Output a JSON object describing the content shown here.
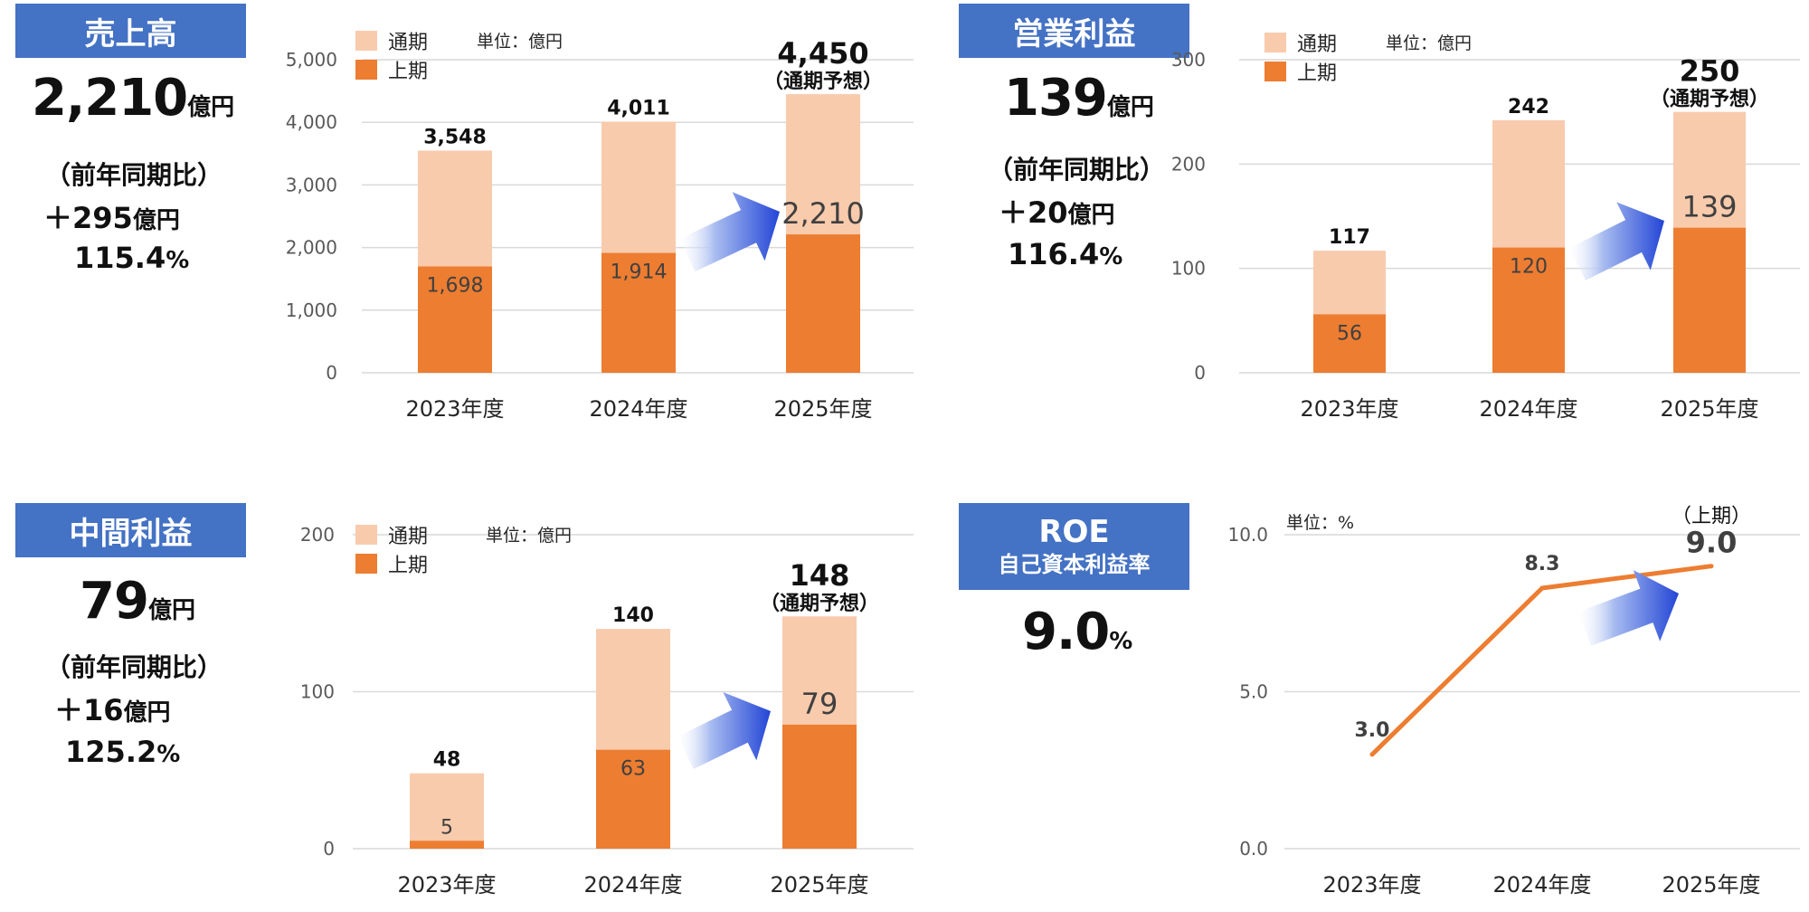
{
  "panels": {
    "sales": {
      "label": "売上高",
      "value": "2,210",
      "value_unit": "億円",
      "yoy_label": "（前年同期比）",
      "yoy_diff": "＋295",
      "yoy_diff_unit": "億円",
      "yoy_pct": "115.4",
      "pct_unit": "%"
    },
    "op": {
      "label": "営業利益",
      "value": "139",
      "value_unit": "億円",
      "yoy_label": "（前年同期比）",
      "yoy_diff": "＋20",
      "yoy_diff_unit": "億円",
      "yoy_pct": "116.4",
      "pct_unit": "%"
    },
    "interim": {
      "label": "中間利益",
      "value": "79",
      "value_unit": "億円",
      "yoy_label": "（前年同期比）",
      "yoy_diff": "＋16",
      "yoy_diff_unit": "億円",
      "yoy_pct": "125.2",
      "pct_unit": "%"
    },
    "roe": {
      "label1": "ROE",
      "label2": "自己資本利益率",
      "value": "9.0",
      "value_unit": "%"
    }
  },
  "colors": {
    "full_year": "#f8cbad",
    "first_half": "#ed7d31",
    "label_bg": "#4472c4",
    "arrow": "#2f55d4"
  },
  "chart_data": [
    {
      "type": "bar",
      "categories": [
        "2023年度",
        "2024年度",
        "2025年度"
      ],
      "series": [
        {
          "name": "通期",
          "values": [
            3548,
            4011,
            4450
          ]
        },
        {
          "name": "上期",
          "values": [
            1698,
            1914,
            2210
          ]
        }
      ],
      "total_labels": [
        "3,548",
        "4,011",
        "4,450"
      ],
      "half_labels": [
        "1,698",
        "1,914",
        "2,210"
      ],
      "forecast_note": "（通期予想）",
      "unit_note": "単位：億円",
      "ylim": [
        0,
        5000
      ],
      "yticks": [
        "0",
        "1,000",
        "2,000",
        "3,000",
        "4,000",
        "5,000"
      ]
    },
    {
      "type": "bar",
      "categories": [
        "2023年度",
        "2024年度",
        "2025年度"
      ],
      "series": [
        {
          "name": "通期",
          "values": [
            117,
            242,
            250
          ]
        },
        {
          "name": "上期",
          "values": [
            56,
            120,
            139
          ]
        }
      ],
      "total_labels": [
        "117",
        "242",
        "250"
      ],
      "half_labels": [
        "56",
        "120",
        "139"
      ],
      "forecast_note": "（通期予想）",
      "unit_note": "単位：億円",
      "ylim": [
        0,
        300
      ],
      "yticks": [
        "0",
        "100",
        "200",
        "300"
      ]
    },
    {
      "type": "bar",
      "categories": [
        "2023年度",
        "2024年度",
        "2025年度"
      ],
      "series": [
        {
          "name": "通期",
          "values": [
            48,
            140,
            148
          ]
        },
        {
          "name": "上期",
          "values": [
            5,
            63,
            79
          ]
        }
      ],
      "total_labels": [
        "48",
        "140",
        "148"
      ],
      "half_labels": [
        "5",
        "63",
        "79"
      ],
      "forecast_note": "（通期予想）",
      "unit_note": "単位：億円",
      "ylim": [
        0,
        200
      ],
      "yticks": [
        "0",
        "100",
        "200"
      ]
    },
    {
      "type": "line",
      "categories": [
        "2023年度",
        "2024年度",
        "2025年度"
      ],
      "values": [
        3.0,
        8.3,
        9.0
      ],
      "value_labels": [
        "3.0",
        "8.3",
        "9.0"
      ],
      "last_note": "（上期）",
      "unit_note": "単位：%",
      "ylim": [
        0,
        10
      ],
      "yticks": [
        "0.0",
        "5.0",
        "10.0"
      ]
    }
  ]
}
